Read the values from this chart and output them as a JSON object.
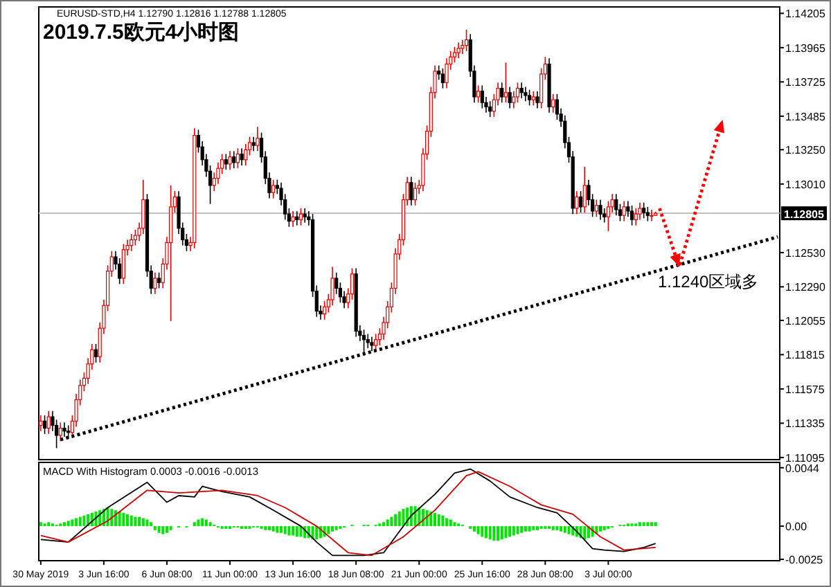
{
  "chart_data": [
    {
      "type": "candlestick",
      "title": "2019.7.5欧元4小时图",
      "subtitle": "EURUSD-STD,H4 1.12790 1.12816 1.12788 1.12805",
      "tick_labels": "y",
      "ylim": [
        1.1108,
        1.1425
      ],
      "yticks": [
        1.14205,
        1.13965,
        1.13725,
        1.13485,
        {
          "value": 1.1325,
          "label": "1.13250"
        },
        {
          "value": 1.1301,
          "label": "1.13010"
        },
        {
          "value": 1.1253,
          "label": "1.12530"
        },
        {
          "value": 1.1229,
          "label": "1.12290"
        },
        1.12055,
        1.11815,
        1.11575,
        1.11335,
        1.11095
      ],
      "categories": [
        null,
        null,
        null,
        null,
        null,
        null,
        null,
        null,
        null,
        null,
        null,
        null,
        null,
        null,
        null,
        null,
        null,
        null,
        null,
        null,
        null,
        null,
        null,
        null,
        null,
        null,
        null,
        null,
        null,
        null,
        null,
        null,
        null,
        null,
        null,
        null,
        null,
        null,
        null,
        null,
        null,
        null,
        null,
        null,
        null,
        null,
        null,
        null,
        null,
        null,
        null,
        null,
        null,
        null,
        null,
        null,
        null,
        null,
        null,
        null,
        null,
        null,
        null,
        null,
        null,
        null,
        null,
        null,
        null,
        null,
        null,
        null,
        null,
        null,
        null,
        null,
        null,
        null,
        null,
        null,
        null,
        null,
        null,
        null,
        null,
        null,
        null,
        null,
        null,
        null,
        null,
        null,
        null,
        null,
        null,
        null,
        null,
        null,
        null,
        null,
        null,
        null,
        null,
        null,
        null,
        null,
        null,
        null,
        null,
        null,
        null,
        null,
        null,
        null,
        null,
        null,
        null,
        null,
        null,
        null,
        null,
        null,
        null,
        null,
        null,
        null,
        null,
        null,
        null,
        null,
        null,
        null,
        null,
        null,
        null,
        null,
        null,
        null,
        null,
        null,
        null,
        null,
        null,
        null,
        null,
        null,
        null,
        null,
        null,
        null,
        null,
        null,
        null,
        null,
        null,
        null,
        null,
        null,
        null,
        null,
        null,
        null,
        null,
        null,
        null,
        null,
        null,
        null,
        null,
        null,
        null,
        null,
        null,
        null,
        null,
        null,
        null,
        null,
        null,
        null,
        null,
        null,
        null,
        null,
        null,
        null,
        null,
        null
      ],
      "ohlc": [
        [
          1.1132,
          1.1139,
          1.1128,
          1.1135
        ],
        [
          1.1135,
          1.1139,
          1.1126,
          1.113
        ],
        [
          1.113,
          1.1142,
          1.1126,
          1.1138
        ],
        [
          1.1138,
          1.1142,
          1.1128,
          1.1132
        ],
        [
          1.1132,
          1.1136,
          1.1116,
          1.1125
        ],
        [
          1.1125,
          1.1134,
          1.1121,
          1.113
        ],
        [
          1.113,
          1.1134,
          1.1124,
          1.1128
        ],
        [
          1.1128,
          1.1132,
          1.1123,
          1.1127
        ],
        [
          1.1127,
          1.1139,
          1.1123,
          1.1135
        ],
        [
          1.1135,
          1.1154,
          1.1131,
          1.115
        ],
        [
          1.115,
          1.1164,
          1.1146,
          1.116
        ],
        [
          1.116,
          1.1169,
          1.1156,
          1.1165
        ],
        [
          1.1165,
          1.1179,
          1.1161,
          1.1175
        ],
        [
          1.1175,
          1.1189,
          1.1171,
          1.1185
        ],
        [
          1.1185,
          1.1189,
          1.1176,
          1.118
        ],
        [
          1.118,
          1.1204,
          1.1176,
          1.12
        ],
        [
          1.12,
          1.122,
          1.1196,
          1.1216
        ],
        [
          1.1216,
          1.1244,
          1.1212,
          1.124
        ],
        [
          1.124,
          1.1254,
          1.1236,
          1.125
        ],
        [
          1.125,
          1.1254,
          1.1241,
          1.1245
        ],
        [
          1.1245,
          1.1249,
          1.1231,
          1.1235
        ],
        [
          1.1235,
          1.1259,
          1.1231,
          1.1255
        ],
        [
          1.1255,
          1.1262,
          1.1251,
          1.1258
        ],
        [
          1.1258,
          1.1266,
          1.1254,
          1.1262
        ],
        [
          1.1262,
          1.1269,
          1.1258,
          1.1265
        ],
        [
          1.1265,
          1.1274,
          1.1261,
          1.127
        ],
        [
          1.127,
          1.1304,
          1.1266,
          1.129
        ],
        [
          1.129,
          1.1294,
          1.1236,
          1.124
        ],
        [
          1.124,
          1.1244,
          1.1224,
          1.1228
        ],
        [
          1.1228,
          1.1239,
          1.1224,
          1.1235
        ],
        [
          1.1235,
          1.1239,
          1.1228,
          1.1232
        ],
        [
          1.1232,
          1.1249,
          1.1228,
          1.1245
        ],
        [
          1.1245,
          1.1264,
          1.1241,
          1.126
        ],
        [
          1.126,
          1.13,
          1.1205,
          1.1285
        ],
        [
          1.1285,
          1.1296,
          1.1281,
          1.1292
        ],
        [
          1.1292,
          1.1296,
          1.1266,
          1.127
        ],
        [
          1.127,
          1.1274,
          1.1258,
          1.1262
        ],
        [
          1.1262,
          1.1266,
          1.1254,
          1.1258
        ],
        [
          1.1258,
          1.1264,
          1.1254,
          1.126
        ],
        [
          1.126,
          1.134,
          1.1256,
          1.1335
        ],
        [
          1.1335,
          1.1339,
          1.1323,
          1.1327
        ],
        [
          1.1327,
          1.1331,
          1.1314,
          1.1318
        ],
        [
          1.1318,
          1.1322,
          1.1306,
          1.131
        ],
        [
          1.131,
          1.1314,
          1.1287,
          1.13
        ],
        [
          1.13,
          1.1309,
          1.1296,
          1.1305
        ],
        [
          1.1305,
          1.1316,
          1.1301,
          1.1312
        ],
        [
          1.1312,
          1.1322,
          1.1308,
          1.1318
        ],
        [
          1.1318,
          1.1322,
          1.1311,
          1.1315
        ],
        [
          1.1315,
          1.1324,
          1.1311,
          1.132
        ],
        [
          1.132,
          1.1324,
          1.1312,
          1.1316
        ],
        [
          1.1316,
          1.1326,
          1.1312,
          1.1322
        ],
        [
          1.1322,
          1.1326,
          1.1314,
          1.1318
        ],
        [
          1.1318,
          1.1329,
          1.1314,
          1.1325
        ],
        [
          1.1325,
          1.1334,
          1.1321,
          1.133
        ],
        [
          1.133,
          1.1334,
          1.1324,
          1.1328
        ],
        [
          1.1328,
          1.1341,
          1.1324,
          1.1333
        ],
        [
          1.1333,
          1.1337,
          1.1316,
          1.132
        ],
        [
          1.132,
          1.1324,
          1.1301,
          1.1305
        ],
        [
          1.1305,
          1.1309,
          1.1291,
          1.1295
        ],
        [
          1.1295,
          1.1304,
          1.1291,
          1.13
        ],
        [
          1.13,
          1.1304,
          1.1294,
          1.1298
        ],
        [
          1.1298,
          1.1302,
          1.1286,
          1.129
        ],
        [
          1.129,
          1.1294,
          1.1276,
          1.128
        ],
        [
          1.128,
          1.1284,
          1.1271,
          1.1275
        ],
        [
          1.1275,
          1.1282,
          1.1271,
          1.1278
        ],
        [
          1.1278,
          1.1282,
          1.1272,
          1.1276
        ],
        [
          1.1276,
          1.1284,
          1.1272,
          1.128
        ],
        [
          1.128,
          1.1284,
          1.1274,
          1.1278
        ],
        [
          1.1278,
          1.1282,
          1.1272,
          1.1276
        ],
        [
          1.1276,
          1.128,
          1.1222,
          1.1226
        ],
        [
          1.1226,
          1.123,
          1.1208,
          1.1212
        ],
        [
          1.1212,
          1.1216,
          1.1206,
          1.121
        ],
        [
          1.121,
          1.1219,
          1.1206,
          1.1215
        ],
        [
          1.1215,
          1.1224,
          1.1211,
          1.122
        ],
        [
          1.122,
          1.1243,
          1.1216,
          1.1235
        ],
        [
          1.1235,
          1.1239,
          1.1224,
          1.1228
        ],
        [
          1.1228,
          1.1232,
          1.1218,
          1.1222
        ],
        [
          1.1222,
          1.1226,
          1.1214,
          1.1218
        ],
        [
          1.1218,
          1.1228,
          1.1214,
          1.1224
        ],
        [
          1.1224,
          1.1242,
          1.122,
          1.1238
        ],
        [
          1.1238,
          1.1242,
          1.1194,
          1.1198
        ],
        [
          1.1198,
          1.1202,
          1.1191,
          1.1195
        ],
        [
          1.1195,
          1.1199,
          1.1181,
          1.1192
        ],
        [
          1.1192,
          1.1196,
          1.1186,
          1.119
        ],
        [
          1.119,
          1.1194,
          1.1184,
          1.1188
        ],
        [
          1.1188,
          1.1196,
          1.1184,
          1.1192
        ],
        [
          1.1192,
          1.12,
          1.1188,
          1.1196
        ],
        [
          1.1196,
          1.1208,
          1.1192,
          1.1204
        ],
        [
          1.1204,
          1.1219,
          1.12,
          1.1215
        ],
        [
          1.1215,
          1.1232,
          1.1211,
          1.1228
        ],
        [
          1.1228,
          1.1256,
          1.1224,
          1.1252
        ],
        [
          1.1252,
          1.1266,
          1.1248,
          1.1262
        ],
        [
          1.1262,
          1.1294,
          1.1258,
          1.129
        ],
        [
          1.129,
          1.1306,
          1.1286,
          1.1302
        ],
        [
          1.1302,
          1.1306,
          1.1286,
          1.129
        ],
        [
          1.129,
          1.1302,
          1.1286,
          1.1298
        ],
        [
          1.1298,
          1.1304,
          1.1294,
          1.13
        ],
        [
          1.13,
          1.1326,
          1.1296,
          1.1322
        ],
        [
          1.1322,
          1.1342,
          1.1318,
          1.1338
        ],
        [
          1.1338,
          1.1369,
          1.1334,
          1.1365
        ],
        [
          1.1365,
          1.1384,
          1.1361,
          1.138
        ],
        [
          1.138,
          1.1384,
          1.1374,
          1.1378
        ],
        [
          1.1378,
          1.1382,
          1.1368,
          1.1372
        ],
        [
          1.1372,
          1.1389,
          1.1368,
          1.1385
        ],
        [
          1.1385,
          1.1394,
          1.1381,
          1.139
        ],
        [
          1.139,
          1.1397,
          1.1386,
          1.1393
        ],
        [
          1.1393,
          1.14,
          1.1389,
          1.1396
        ],
        [
          1.1396,
          1.1402,
          1.1392,
          1.1398
        ],
        [
          1.1398,
          1.1409,
          1.1394,
          1.1402
        ],
        [
          1.1402,
          1.1406,
          1.1376,
          1.138
        ],
        [
          1.138,
          1.1384,
          1.1358,
          1.1362
        ],
        [
          1.1362,
          1.137,
          1.1358,
          1.1366
        ],
        [
          1.1366,
          1.137,
          1.1354,
          1.1358
        ],
        [
          1.1358,
          1.1362,
          1.1351,
          1.1355
        ],
        [
          1.1355,
          1.1359,
          1.1348,
          1.1352
        ],
        [
          1.1352,
          1.1364,
          1.1348,
          1.136
        ],
        [
          1.136,
          1.1372,
          1.1356,
          1.1368
        ],
        [
          1.1368,
          1.1372,
          1.1358,
          1.1362
        ],
        [
          1.1362,
          1.1386,
          1.1358,
          1.1365
        ],
        [
          1.1365,
          1.1369,
          1.1354,
          1.1358
        ],
        [
          1.1358,
          1.1366,
          1.1354,
          1.1362
        ],
        [
          1.1362,
          1.1372,
          1.1358,
          1.1368
        ],
        [
          1.1368,
          1.1372,
          1.1361,
          1.1365
        ],
        [
          1.1365,
          1.1369,
          1.1359,
          1.1363
        ],
        [
          1.1363,
          1.1367,
          1.1356,
          1.136
        ],
        [
          1.136,
          1.1366,
          1.1356,
          1.1362
        ],
        [
          1.1362,
          1.1366,
          1.1354,
          1.1358
        ],
        [
          1.1358,
          1.1382,
          1.1354,
          1.1378
        ],
        [
          1.1378,
          1.139,
          1.1374,
          1.1385
        ],
        [
          1.1385,
          1.1389,
          1.1351,
          1.1355
        ],
        [
          1.1355,
          1.1364,
          1.1351,
          1.136
        ],
        [
          1.136,
          1.1364,
          1.1346,
          1.135
        ],
        [
          1.135,
          1.1354,
          1.1341,
          1.1345
        ],
        [
          1.1345,
          1.1349,
          1.1326,
          1.133
        ],
        [
          1.133,
          1.1334,
          1.1316,
          1.132
        ],
        [
          1.132,
          1.1324,
          1.128,
          1.1284
        ],
        [
          1.1284,
          1.1296,
          1.128,
          1.1292
        ],
        [
          1.1292,
          1.1296,
          1.1281,
          1.1285
        ],
        [
          1.1285,
          1.1313,
          1.1281,
          1.13
        ],
        [
          1.13,
          1.1304,
          1.1286,
          1.129
        ],
        [
          1.129,
          1.1294,
          1.1278,
          1.1282
        ],
        [
          1.1282,
          1.129,
          1.1278,
          1.1286
        ],
        [
          1.1286,
          1.129,
          1.1276,
          1.128
        ],
        [
          1.128,
          1.1284,
          1.1274,
          1.1278
        ],
        [
          1.1278,
          1.1289,
          1.1268,
          1.1285
        ],
        [
          1.1285,
          1.1294,
          1.1281,
          1.129
        ],
        [
          1.129,
          1.1294,
          1.1279,
          1.1283
        ],
        [
          1.1283,
          1.1287,
          1.1275,
          1.1279
        ],
        [
          1.1279,
          1.1289,
          1.1275,
          1.1285
        ],
        [
          1.1285,
          1.1289,
          1.1278,
          1.1282
        ],
        [
          1.1282,
          1.1286,
          1.1272,
          1.1276
        ],
        [
          1.1276,
          1.1284,
          1.1272,
          1.128
        ],
        [
          1.128,
          1.1288,
          1.1276,
          1.1284
        ],
        [
          1.1284,
          1.1288,
          1.1277,
          1.1281
        ],
        [
          1.1281,
          1.1285,
          1.1275,
          1.1279
        ],
        [
          1.1279,
          1.1283,
          1.1275,
          1.1279
        ],
        [
          1.1279,
          1.12816,
          1.12788,
          1.12805
        ],
        null,
        null,
        null,
        null,
        null,
        null,
        null,
        null,
        null,
        null,
        null,
        null,
        null,
        null,
        null,
        null,
        null,
        null,
        null,
        null,
        null,
        null,
        null,
        null,
        null,
        null,
        null,
        null,
        null,
        null,
        null
      ],
      "series": [
        {
          "type": "line",
          "color": "#000000",
          "line_style": "dotted",
          "values": [
            null,
            null,
            null,
            null,
            null,
            1.1122,
            null,
            null,
            null,
            null,
            null,
            null,
            null,
            null,
            null,
            null,
            null,
            null,
            null,
            null,
            null,
            null,
            null,
            null,
            null,
            null,
            null,
            null,
            null,
            null,
            null,
            null,
            null,
            null,
            null,
            null,
            null,
            null,
            null,
            null,
            null,
            null,
            null,
            null,
            null,
            null,
            null,
            null,
            null,
            null,
            null,
            null,
            null,
            null,
            null,
            null,
            null,
            null,
            null,
            null,
            null,
            null,
            null,
            null,
            null,
            null,
            null,
            null,
            null,
            null,
            null,
            null,
            null,
            null,
            null,
            null,
            null,
            null,
            null,
            null,
            null,
            null,
            null,
            null,
            null,
            null,
            null,
            null,
            null,
            null,
            null,
            null,
            null,
            null,
            null,
            null,
            null,
            null,
            null,
            null,
            null,
            null,
            null,
            null,
            null,
            null,
            null,
            null,
            null,
            null,
            null,
            null,
            null,
            null,
            null,
            null,
            null,
            null,
            null,
            null,
            null,
            null,
            null,
            null,
            null,
            null,
            null,
            null,
            null,
            null,
            null,
            null,
            null,
            null,
            null,
            null,
            null,
            null,
            null,
            null,
            null,
            null,
            null,
            null,
            null,
            null,
            null,
            null,
            null,
            null,
            null,
            null,
            null,
            null,
            null,
            null,
            null,
            null,
            null,
            null,
            null,
            null,
            null,
            null,
            null,
            null,
            null,
            null,
            null,
            null,
            null,
            null,
            null,
            null,
            null,
            null,
            null,
            null,
            null,
            null,
            null,
            null,
            null,
            null,
            null,
            null,
            null,
            1.1264
          ]
        },
        {
          "type": "line",
          "color": "#ff0000",
          "line_style": "dotted",
          "values": [
            null,
            null,
            null,
            null,
            null,
            null,
            null,
            null,
            null,
            null,
            null,
            null,
            null,
            null,
            null,
            null,
            null,
            null,
            null,
            null,
            null,
            null,
            null,
            null,
            null,
            null,
            null,
            null,
            null,
            null,
            null,
            null,
            null,
            null,
            null,
            null,
            null,
            null,
            null,
            null,
            null,
            null,
            null,
            null,
            null,
            null,
            null,
            null,
            null,
            null,
            null,
            null,
            null,
            null,
            null,
            null,
            null,
            null,
            null,
            null,
            null,
            null,
            null,
            null,
            null,
            null,
            null,
            null,
            null,
            null,
            null,
            null,
            null,
            null,
            null,
            null,
            null,
            null,
            null,
            null,
            null,
            null,
            null,
            null,
            null,
            null,
            null,
            null,
            null,
            null,
            null,
            null,
            null,
            null,
            null,
            null,
            null,
            null,
            null,
            null,
            null,
            null,
            null,
            null,
            null,
            null,
            null,
            null,
            null,
            null,
            null,
            null,
            null,
            null,
            null,
            null,
            null,
            null,
            null,
            null,
            null,
            null,
            null,
            null,
            null,
            null,
            null,
            null,
            null,
            null,
            null,
            null,
            null,
            null,
            null,
            null,
            null,
            null,
            null,
            null,
            null,
            null,
            null,
            null,
            null,
            null,
            null,
            null,
            null,
            null,
            null,
            null,
            null,
            null,
            null,
            null,
            null,
            1.1284,
            null,
            null,
            null,
            null,
            1.1243,
            null,
            null,
            null,
            null,
            null,
            null,
            null,
            null,
            null,
            null,
            1.1346,
            null,
            null,
            null,
            null,
            null,
            null,
            null,
            null,
            null,
            null,
            null,
            null,
            null,
            null
          ]
        }
      ],
      "ref_lines": [
        {
          "axis": "y",
          "value": 1.12805,
          "label": "1.12805",
          "color": "#c0c0c0"
        }
      ],
      "annotations": [
        "1.1240区域多"
      ]
    },
    {
      "type": "bar",
      "title": "MACD With Histogram 0.0003 -0.0016 -0.0013",
      "ylim": [
        -0.0026,
        0.0048
      ],
      "yticks": [
        0.0044,
        {
          "value": 0,
          "label": "0.00"
        },
        -0.0025
      ],
      "categories": [
        "30 May 2019",
        null,
        null,
        null,
        null,
        null,
        null,
        null,
        null,
        null,
        null,
        null,
        null,
        null,
        null,
        null,
        "3 Jun 16:00",
        null,
        null,
        null,
        null,
        null,
        null,
        null,
        null,
        null,
        null,
        null,
        null,
        null,
        null,
        null,
        "6 Jun 08:00",
        null,
        null,
        null,
        null,
        null,
        null,
        null,
        null,
        null,
        null,
        null,
        null,
        null,
        null,
        null,
        "11 Jun 00:00",
        null,
        null,
        null,
        null,
        null,
        null,
        null,
        null,
        null,
        null,
        null,
        null,
        null,
        null,
        null,
        "13 Jun 16:00",
        null,
        null,
        null,
        null,
        null,
        null,
        null,
        null,
        null,
        null,
        null,
        null,
        null,
        null,
        null,
        "18 Jun 08:00",
        null,
        null,
        null,
        null,
        null,
        null,
        null,
        null,
        null,
        null,
        null,
        null,
        null,
        null,
        null,
        "21 Jun 00:00",
        null,
        null,
        null,
        null,
        null,
        null,
        null,
        null,
        null,
        null,
        null,
        null,
        null,
        null,
        null,
        "25 Jun 16:00",
        null,
        null,
        null,
        null,
        null,
        null,
        null,
        null,
        null,
        null,
        null,
        null,
        null,
        null,
        null,
        "28 Jun 08:00",
        null,
        null,
        null,
        null,
        null,
        null,
        null,
        null,
        null,
        null,
        null,
        null,
        null,
        null,
        null,
        "3 Jul 00:00",
        null,
        null,
        null,
        null,
        null,
        null,
        null,
        null,
        null,
        null,
        null,
        null,
        null,
        null,
        null,
        null,
        null,
        null,
        null,
        null,
        null,
        null,
        null,
        null,
        null,
        null,
        null,
        null,
        null,
        null,
        null,
        null,
        null,
        null,
        null,
        null,
        null,
        null,
        null,
        null,
        null,
        null,
        null
      ],
      "series": [
        {
          "type": "bar",
          "color": "#00e600",
          "values": [
            0.0003,
            0.0002,
            0.0003,
            0.0002,
            0.0001,
            0.0002,
            0.0003,
            0.0004,
            0.0005,
            0.0006,
            0.0007,
            0.0008,
            0.0009,
            0.001,
            0.0011,
            0.0012,
            0.0013,
            0.0014,
            0.0013,
            0.0012,
            0.0011,
            0.001,
            0.0009,
            0.0008,
            0.0007,
            0.0007,
            0.0006,
            0.0005,
            0.0003,
            -0.0003,
            -0.0005,
            -0.0006,
            -0.0005,
            -0.0003,
            0.0,
            -0.0001,
            0.0,
            -0.0001,
            0.0,
            0.0003,
            0.0005,
            0.0006,
            0.0005,
            0.0003,
            0.0001,
            -0.0001,
            -0.0002,
            -0.0002,
            -0.0002,
            -0.0001,
            -0.0001,
            -0.0002,
            -0.0002,
            -0.0002,
            -0.0001,
            -0.0001,
            -0.0002,
            -0.0003,
            -0.0003,
            -0.0004,
            -0.0005,
            -0.0005,
            -0.0006,
            -0.0007,
            -0.0007,
            -0.0008,
            -0.0008,
            -0.0009,
            -0.0009,
            -0.001,
            -0.001,
            -0.0009,
            -0.0008,
            -0.0006,
            -0.0004,
            -0.0003,
            -0.0002,
            -0.0001,
            0.0,
            0.0001,
            0.0,
            0.0,
            0.0001,
            0.0001,
            0.0,
            0.0001,
            0.0002,
            0.0003,
            0.0005,
            0.0007,
            0.0009,
            0.0011,
            0.0013,
            0.0014,
            0.0015,
            0.0015,
            0.0014,
            0.0013,
            0.0012,
            0.0011,
            0.001,
            0.0009,
            0.0008,
            0.0006,
            0.0005,
            0.0003,
            0.0002,
            0.0001,
            0.0,
            -0.0002,
            -0.0004,
            -0.0006,
            -0.0008,
            -0.0009,
            -0.001,
            -0.0011,
            -0.0011,
            -0.001,
            -0.0009,
            -0.0008,
            -0.0007,
            -0.0006,
            -0.0005,
            -0.0004,
            -0.0004,
            -0.0003,
            -0.0003,
            -0.0002,
            -0.0002,
            -0.0002,
            -0.0003,
            -0.0003,
            -0.0004,
            -0.0005,
            -0.0006,
            -0.0007,
            -0.0008,
            -0.0009,
            -0.001,
            -0.0009,
            -0.0008,
            -0.0006,
            -0.0004,
            -0.0003,
            -0.0002,
            -0.0001,
            0.0,
            0.0001,
            0.0001,
            0.0002,
            0.0002,
            0.0002,
            0.0003,
            0.0003,
            0.0003,
            0.0003,
            0.0003,
            null,
            null,
            null,
            null,
            null,
            null,
            null,
            null,
            null,
            null,
            null,
            null,
            null,
            null,
            null,
            null,
            null,
            null,
            null,
            null,
            null,
            null,
            null,
            null,
            null,
            null,
            null,
            null,
            null,
            null,
            null
          ]
        },
        {
          "type": "line",
          "color": "#000000",
          "values": [
            -0.001,
            null,
            null,
            null,
            null,
            null,
            null,
            -0.0012,
            null,
            null,
            null,
            null,
            null,
            null,
            null,
            null,
            null,
            0.0014,
            null,
            null,
            null,
            null,
            null,
            null,
            null,
            null,
            null,
            0.0033,
            null,
            null,
            null,
            null,
            0.0018,
            null,
            null,
            0.0023,
            null,
            null,
            null,
            0.0022,
            null,
            0.003,
            null,
            null,
            null,
            null,
            0.0026,
            null,
            null,
            null,
            null,
            null,
            null,
            0.0022,
            null,
            null,
            null,
            null,
            null,
            0.0012,
            null,
            null,
            null,
            null,
            null,
            null,
            0.0,
            null,
            null,
            null,
            -0.0012,
            null,
            null,
            null,
            -0.0022,
            null,
            null,
            null,
            null,
            null,
            null,
            null,
            -0.0022,
            null,
            null,
            null,
            null,
            -0.002,
            null,
            null,
            null,
            null,
            null,
            null,
            0.0008,
            null,
            null,
            null,
            null,
            null,
            0.0024,
            null,
            null,
            null,
            null,
            0.004,
            null,
            null,
            null,
            0.0043,
            null,
            null,
            null,
            null,
            0.0034,
            null,
            null,
            null,
            null,
            0.0022,
            null,
            null,
            null,
            null,
            null,
            null,
            0.0014,
            null,
            null,
            null,
            null,
            0.001,
            null,
            null,
            null,
            null,
            -0.0004,
            null,
            null,
            null,
            -0.0017,
            null,
            null,
            -0.0018,
            null,
            null,
            null,
            null,
            -0.0019,
            null,
            null,
            null,
            null,
            -0.0016,
            null,
            null,
            -0.0013,
            null,
            null,
            null,
            null,
            null,
            null,
            null,
            null,
            null,
            null,
            null,
            null,
            null,
            null,
            null,
            null,
            null,
            null,
            null,
            null,
            null,
            null,
            null,
            null,
            null,
            null,
            null,
            null,
            null,
            null,
            null
          ]
        },
        {
          "type": "line",
          "color": "#cc0000",
          "values": [
            -0.0007,
            null,
            null,
            null,
            null,
            null,
            null,
            -0.0012,
            null,
            null,
            null,
            null,
            null,
            null,
            null,
            null,
            null,
            0.0004,
            null,
            null,
            null,
            null,
            null,
            null,
            null,
            null,
            null,
            0.0027,
            null,
            null,
            null,
            null,
            null,
            null,
            null,
            0.0025,
            null,
            null,
            null,
            null,
            null,
            null,
            null,
            null,
            null,
            null,
            0.0027,
            null,
            null,
            null,
            null,
            null,
            null,
            null,
            null,
            0.0023,
            null,
            null,
            null,
            null,
            null,
            null,
            0.0014,
            null,
            null,
            null,
            null,
            null,
            null,
            null,
            0.0,
            null,
            null,
            null,
            null,
            null,
            null,
            null,
            -0.002,
            null,
            null,
            null,
            null,
            null,
            -0.0022,
            null,
            null,
            null,
            null,
            null,
            null,
            null,
            -0.0008,
            null,
            null,
            null,
            null,
            null,
            null,
            null,
            0.0012,
            null,
            null,
            null,
            null,
            null,
            null,
            null,
            0.0038,
            null,
            null,
            0.0041,
            null,
            null,
            null,
            null,
            null,
            null,
            null,
            0.003,
            null,
            null,
            null,
            null,
            null,
            null,
            null,
            0.0016,
            null,
            null,
            null,
            null,
            null,
            null,
            null,
            0.0009,
            null,
            null,
            null,
            null,
            null,
            null,
            -0.0008,
            null,
            null,
            null,
            null,
            null,
            -0.0018,
            null,
            null,
            null,
            null,
            null,
            null,
            null,
            -0.0016,
            null,
            null,
            null,
            null,
            null,
            null,
            null,
            null,
            null,
            null,
            null,
            null,
            null,
            null,
            null,
            null,
            null,
            null,
            null,
            null,
            null,
            null,
            null,
            null,
            null,
            null,
            null,
            null,
            null,
            null,
            null
          ]
        }
      ]
    }
  ]
}
